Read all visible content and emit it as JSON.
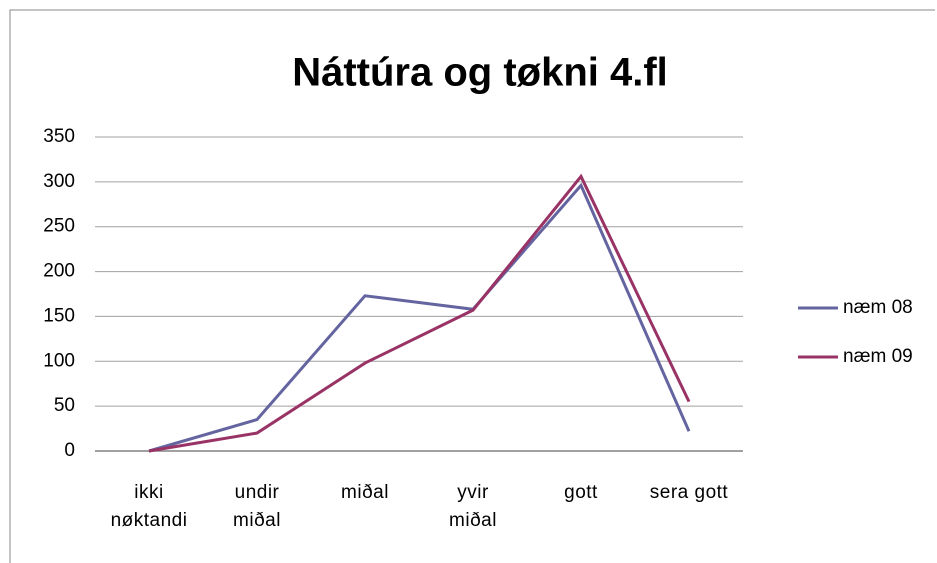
{
  "chart_data": {
    "type": "line",
    "title": "Náttúra og tøkni 4.fl",
    "categories": [
      "ikki\nnøktandi",
      "undir\nmiðal",
      "miðal",
      "yvir\nmiðal",
      "gott",
      "sera gott"
    ],
    "series": [
      {
        "name": "næm 08",
        "color": "#6464a0",
        "values": [
          0,
          35,
          173,
          158,
          296,
          22
        ]
      },
      {
        "name": "næm 09",
        "color": "#993366",
        "values": [
          0,
          20,
          98,
          157,
          306,
          55
        ]
      }
    ],
    "ylim": [
      0,
      350
    ],
    "yticks": [
      0,
      50,
      100,
      150,
      200,
      250,
      300,
      350
    ],
    "grid": true,
    "legend": "right"
  }
}
